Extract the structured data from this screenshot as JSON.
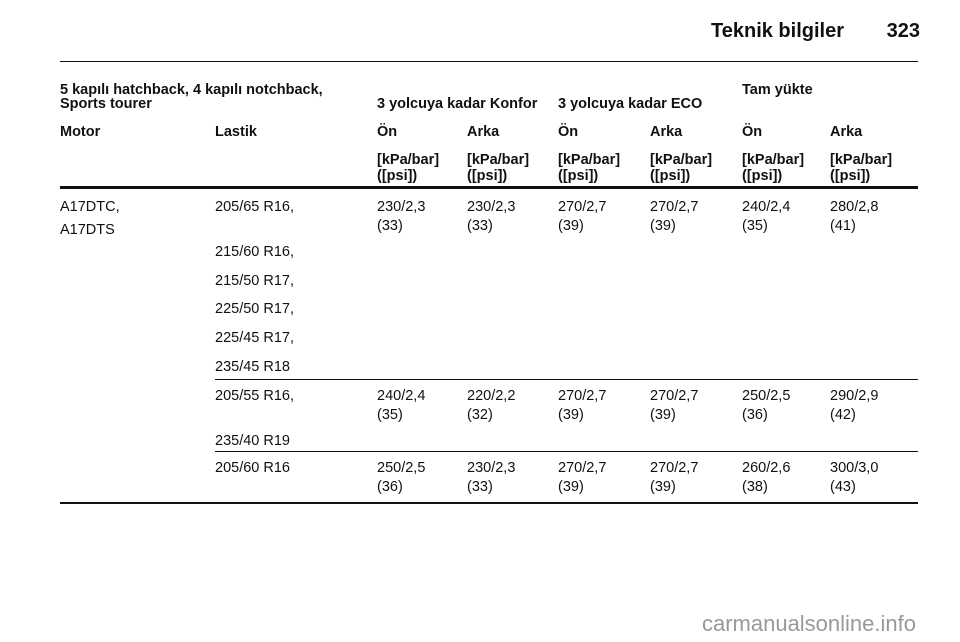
{
  "header": {
    "title": "Teknik bilgiler",
    "page": "323"
  },
  "table": {
    "heading": {
      "vehicle": [
        "5 kapılı hatchback, 4 kapılı notchback,",
        "Sports tourer"
      ],
      "groups": [
        "3 yolcuya kadar Konfor",
        "3 yolcuya kadar ECO",
        "Tam yükte"
      ],
      "columns": [
        "Motor",
        "Lastik",
        "Ön",
        "Arka",
        "Ön",
        "Arka",
        "Ön",
        "Arka"
      ],
      "units": [
        [
          "[kPa/bar]",
          "([psi])"
        ],
        [
          "[kPa/bar]",
          "([psi])"
        ],
        [
          "[kPa/bar]",
          "([psi])"
        ],
        [
          "[kPa/bar]",
          "([psi])"
        ],
        [
          "[kPa/bar]",
          "([psi])"
        ],
        [
          "[kPa/bar]",
          "([psi])"
        ]
      ]
    },
    "engine": [
      "A17DTC,",
      "A17DTS"
    ],
    "rows": [
      {
        "tires": [
          "205/65 R16,",
          "215/60 R16,",
          "215/50 R17,",
          "225/50 R17,",
          "225/45 R17,",
          "235/45 R18"
        ],
        "pressures": [
          [
            "230/2,3",
            "(33)"
          ],
          [
            "230/2,3",
            "(33)"
          ],
          [
            "270/2,7",
            "(39)"
          ],
          [
            "270/2,7",
            "(39)"
          ],
          [
            "240/2,4",
            "(35)"
          ],
          [
            "280/2,8",
            "(41)"
          ]
        ]
      },
      {
        "tires": [
          "205/55 R16,",
          "235/40 R19"
        ],
        "pressures": [
          [
            "240/2,4",
            "(35)"
          ],
          [
            "220/2,2",
            "(32)"
          ],
          [
            "270/2,7",
            "(39)"
          ],
          [
            "270/2,7",
            "(39)"
          ],
          [
            "250/2,5",
            "(36)"
          ],
          [
            "290/2,9",
            "(42)"
          ]
        ]
      },
      {
        "tires": [
          "205/60 R16"
        ],
        "pressures": [
          [
            "250/2,5",
            "(36)"
          ],
          [
            "230/2,3",
            "(33)"
          ],
          [
            "270/2,7",
            "(39)"
          ],
          [
            "270/2,7",
            "(39)"
          ],
          [
            "260/2,6",
            "(38)"
          ],
          [
            "300/3,0",
            "(43)"
          ]
        ]
      }
    ]
  },
  "watermark": "carmanualsonline.info"
}
